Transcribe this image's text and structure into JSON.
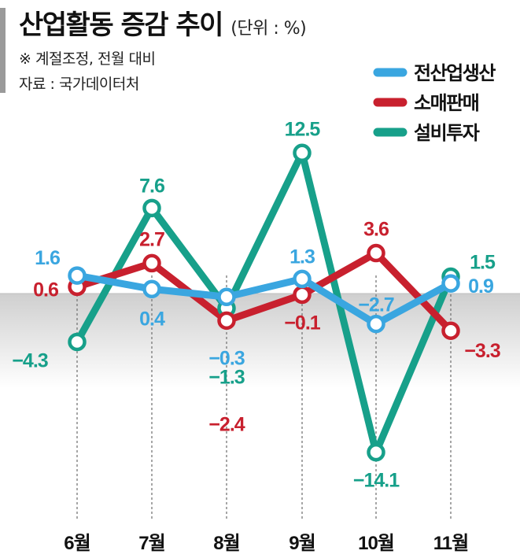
{
  "header": {
    "title": "산업활동 증감 추이",
    "unit": "(단위 : %)",
    "note": "※ 계절조정, 전월 대비",
    "source": "자료 : 국가데이터처"
  },
  "chart_data": {
    "type": "line",
    "title": "산업활동 증감 추이",
    "unit_label": "(단위 : %)",
    "categories": [
      "6월",
      "7월",
      "8월",
      "9월",
      "10월",
      "11월"
    ],
    "series": [
      {
        "name": "전산업생산",
        "color": "#3aa6e0",
        "values": [
          1.6,
          0.4,
          -0.3,
          1.3,
          -2.7,
          0.9
        ],
        "labels": [
          "1.6",
          "0.4",
          "−0.3",
          "1.3",
          "−2.7",
          "0.9"
        ]
      },
      {
        "name": "소매판매",
        "color": "#c8202e",
        "values": [
          0.6,
          2.7,
          -2.4,
          -0.1,
          3.6,
          -3.3
        ],
        "labels": [
          "0.6",
          "2.7",
          "−2.4",
          "−0.1",
          "3.6",
          "−3.3"
        ]
      },
      {
        "name": "설비투자",
        "color": "#17a08a",
        "values": [
          -4.3,
          7.6,
          -1.3,
          12.5,
          -14.1,
          1.5
        ],
        "labels": [
          "−4.3",
          "7.6",
          "−1.3",
          "12.5",
          "−14.1",
          "1.5"
        ]
      }
    ],
    "legend_position": "top-right",
    "grid": false
  }
}
